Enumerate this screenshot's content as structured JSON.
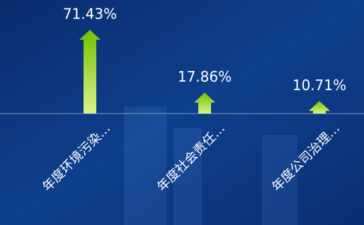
{
  "chart_data": {
    "type": "arrow-bar",
    "categories": [
      "年度环境污染…",
      "年度社会责任…",
      "年度公司治理…"
    ],
    "values": [
      71.43,
      17.86,
      10.71
    ],
    "value_labels": [
      "71.43%",
      "17.86%",
      "10.71%"
    ],
    "colors": [
      "#72c000",
      "#dcf28a"
    ]
  }
}
